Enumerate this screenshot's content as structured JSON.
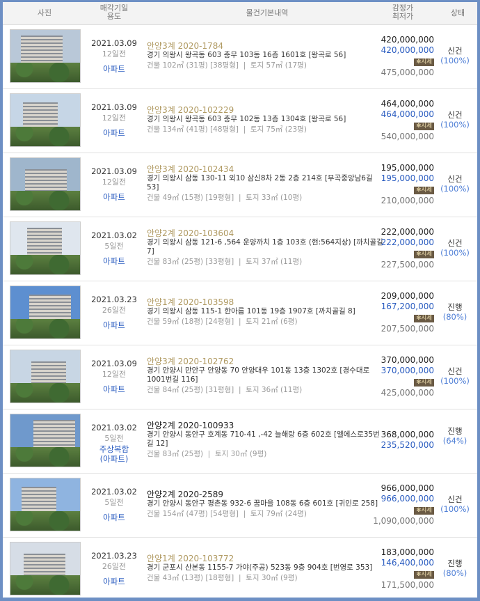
{
  "header": {
    "photo": "사진",
    "date_use_1": "매각기일",
    "date_use_2": "용도",
    "info": "물건기본내역",
    "price_1": "감정가",
    "price_2": "최저가",
    "status": "상태"
  },
  "market_badge": "✻시세",
  "rows": [
    {
      "date": "2021.03.09",
      "ago": "12일전",
      "use": "아파트",
      "case": "안양3계 2020-1784",
      "case_color": "gold",
      "addr": "경기 의왕시 왕곡동 603 충무 103동 16층 1601호 [왕곡로 56]",
      "area": "건물 102㎡ (31평) [38평형]  |  토지 57㎡ (17평)",
      "appraisal": "420,000,000",
      "minimum": "420,000,000",
      "market": "475,000,000",
      "status": "신건",
      "pct": "(100%)"
    },
    {
      "date": "2021.03.09",
      "ago": "12일전",
      "use": "아파트",
      "case": "안양3계 2020-102229",
      "case_color": "gold",
      "addr": "경기 의왕시 왕곡동 603 충무 102동 13층 1304호 [왕곡로 56]",
      "area": "건물 134㎡ (41평) [48평형]  |  토지 75㎡ (23평)",
      "appraisal": "464,000,000",
      "minimum": "464,000,000",
      "market": "540,000,000",
      "status": "신건",
      "pct": "(100%)"
    },
    {
      "date": "2021.03.09",
      "ago": "12일전",
      "use": "아파트",
      "case": "안양3계 2020-102434",
      "case_color": "gold",
      "addr": "경기 의왕시 삼동 130-11 외10 삼신8차 2동 2층 214호 [부곡중앙남6길 53]",
      "area": "건물 49㎡ (15평) [19평형]  |  토지 33㎡ (10평)",
      "appraisal": "195,000,000",
      "minimum": "195,000,000",
      "market": "210,000,000",
      "status": "신건",
      "pct": "(100%)"
    },
    {
      "date": "2021.03.02",
      "ago": "5일전",
      "use": "아파트",
      "case": "안양2계 2020-103604",
      "case_color": "gold",
      "addr": "경기 의왕시 삼동 121-6 ,564 운양까치 1층 103호 (현:564지상) [까치골길 7]",
      "area": "건물 83㎡ (25평) [33평형]  |  토지 37㎡ (11평)",
      "appraisal": "222,000,000",
      "minimum": "222,000,000",
      "market": "227,500,000",
      "status": "신건",
      "pct": "(100%)"
    },
    {
      "date": "2021.03.23",
      "ago": "26일전",
      "use": "아파트",
      "case": "안양1계 2020-103598",
      "case_color": "gold",
      "addr": "경기 의왕시 삼동 115-1 한아름 101동 19층 1907호 [까치골길 8]",
      "area": "건물 59㎡ (18평) [24평형]  |  토지 21㎡ (6평)",
      "appraisal": "209,000,000",
      "minimum": "167,200,000",
      "market": "207,500,000",
      "status": "진행",
      "pct": "(80%)"
    },
    {
      "date": "2021.03.09",
      "ago": "12일전",
      "use": "아파트",
      "case": "안양3계 2020-102762",
      "case_color": "gold",
      "addr": "경기 안양시 만안구 안양동 70 안양대우 101동 13층 1302호 [경수대로 1001번길 116]",
      "area": "건물 84㎡ (25평) [31평형]  |  토지 36㎡ (11평)",
      "appraisal": "370,000,000",
      "minimum": "370,000,000",
      "market": "425,000,000",
      "status": "신건",
      "pct": "(100%)"
    },
    {
      "date": "2021.03.02",
      "ago": "5일전",
      "use": "주상복합\n(아파트)",
      "case": "안양2계 2020-100933",
      "case_color": "black",
      "addr": "경기 안양시 동안구 호계동 710-41 ,-42 늘해랑 6층 602호 [엘에스로35번길 12]",
      "area": "건물 83㎡ (25평)  |  토지 30㎡ (9평)",
      "appraisal": "368,000,000",
      "minimum": "235,520,000",
      "status": "진행",
      "pct": "(64%)"
    },
    {
      "date": "2021.03.02",
      "ago": "5일전",
      "use": "아파트",
      "case": "안양2계 2020-2589",
      "case_color": "black",
      "addr": "경기 안양시 동안구 평촌동 932-6 꿈마을 108동 6층 601호 [귀인로 258]",
      "area": "건물 154㎡ (47평) [54평형]  |  토지 79㎡ (24평)",
      "appraisal": "966,000,000",
      "minimum": "966,000,000",
      "market": "1,090,000,000",
      "status": "신건",
      "pct": "(100%)"
    },
    {
      "date": "2021.03.23",
      "ago": "26일전",
      "use": "아파트",
      "case": "안양1계 2020-103772",
      "case_color": "gold",
      "addr": "경기 군포시 산본동 1155-7 가야(주공) 523동 9층 904호 [번영로 353]",
      "area": "건물 43㎡ (13평) [18평형]  |  토지 30㎡ (9평)",
      "appraisal": "183,000,000",
      "minimum": "146,400,000",
      "market": "171,500,000",
      "status": "진행",
      "pct": "(80%)"
    }
  ]
}
